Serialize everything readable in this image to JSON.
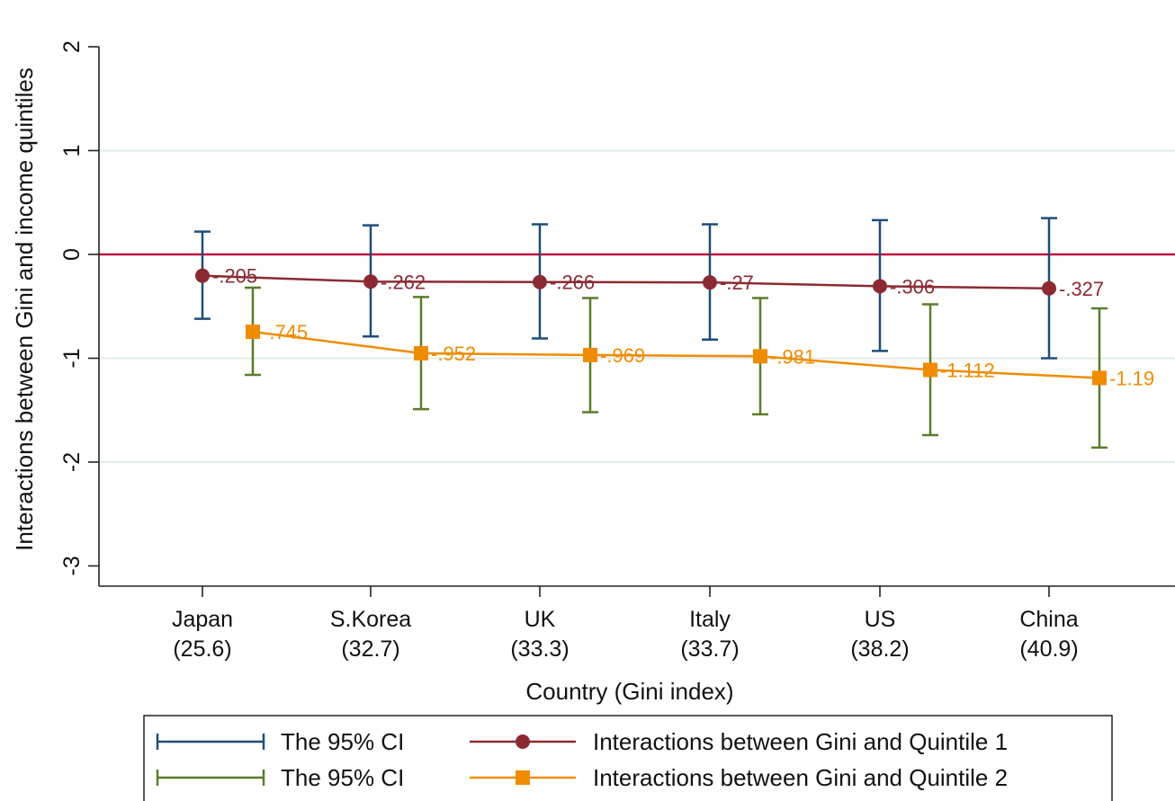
{
  "chart_data": {
    "type": "line",
    "xlabel": "Country (Gini index)",
    "ylabel": "Interactions between Gini and income quintiles",
    "ylim": [
      -3,
      2
    ],
    "yticks": [
      "2",
      "1",
      "0",
      "-1",
      "-2",
      "-3"
    ],
    "ytick_values": [
      2,
      1,
      0,
      -1,
      -2,
      -3
    ],
    "grid": "horizontal",
    "reference_line": {
      "y": 0,
      "color": "#c0143c"
    },
    "categories": [
      {
        "name": "Japan",
        "gini": "(25.6)"
      },
      {
        "name": "S.Korea",
        "gini": "(32.7)"
      },
      {
        "name": "UK",
        "gini": "(33.3)"
      },
      {
        "name": "Italy",
        "gini": "(33.7)"
      },
      {
        "name": "US",
        "gini": "(38.2)"
      },
      {
        "name": "China",
        "gini": "(40.9)"
      }
    ],
    "series": [
      {
        "name": "Interactions between Gini and Quintile 1",
        "marker": "circle",
        "color": "#8b2a33",
        "values": [
          -0.205,
          -0.262,
          -0.266,
          -0.27,
          -0.306,
          -0.327
        ],
        "labels": [
          "-.205",
          "-.262",
          "-.266",
          "-.27",
          "-.306",
          "-.327"
        ],
        "ci_low": [
          -0.62,
          -0.79,
          -0.81,
          -0.82,
          -0.93,
          -1.0
        ],
        "ci_high": [
          0.22,
          0.28,
          0.29,
          0.29,
          0.33,
          0.35
        ],
        "ci_color": "#1f4e79",
        "ci_legend": "The 95% CI"
      },
      {
        "name": "Interactions between Gini and Quintile 2",
        "marker": "square",
        "color": "#f08c00",
        "values": [
          -0.745,
          -0.952,
          -0.969,
          -0.981,
          -1.112,
          -1.19
        ],
        "labels": [
          "-.745",
          "-.952",
          "-.969",
          "-.981",
          "-1.112",
          "-1.19"
        ],
        "ci_low": [
          -1.16,
          -1.49,
          -1.52,
          -1.54,
          -1.74,
          -1.86
        ],
        "ci_high": [
          -0.32,
          -0.41,
          -0.42,
          -0.42,
          -0.48,
          -0.52
        ],
        "ci_color": "#5a7d2a",
        "ci_legend": "The 95% CI"
      }
    ],
    "legend": {
      "position": "bottom",
      "entries": [
        {
          "label": "The 95% CI",
          "kind": "ci",
          "series": 0
        },
        {
          "label": "Interactions between Gini and Quintile 1",
          "kind": "line",
          "series": 0
        },
        {
          "label": "The 95% CI",
          "kind": "ci",
          "series": 1
        },
        {
          "label": "Interactions between Gini and Quintile 2",
          "kind": "line",
          "series": 1
        }
      ]
    }
  }
}
